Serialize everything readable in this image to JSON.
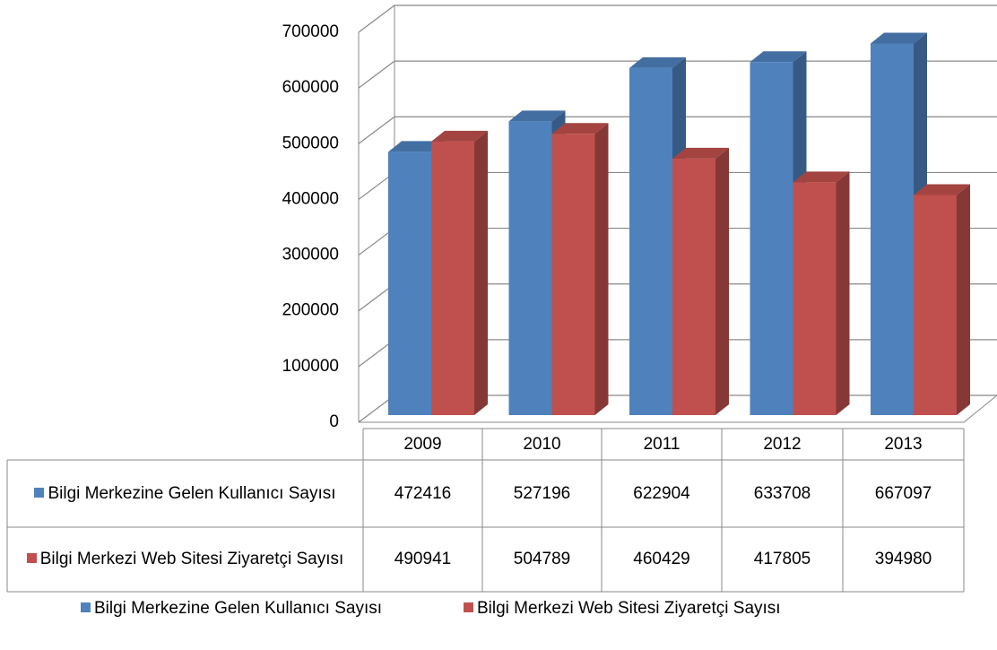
{
  "chart_data": {
    "type": "bar3d",
    "categories": [
      "2009",
      "2010",
      "2011",
      "2012",
      "2013"
    ],
    "series": [
      {
        "name": "Bilgi Merkezine Gelen Kullanıcı Sayısı",
        "color": "#4f81bd",
        "values": [
          472416,
          527196,
          622904,
          633708,
          667097
        ]
      },
      {
        "name": "Bilgi Merkezi Web Sitesi Ziyaretçi Sayısı",
        "color": "#c0504d",
        "values": [
          490941,
          504789,
          460429,
          417805,
          394980
        ]
      }
    ],
    "ylim": [
      0,
      700000
    ],
    "yticks": [
      0,
      100000,
      200000,
      300000,
      400000,
      500000,
      600000,
      700000
    ],
    "grid": true,
    "legend": "bottom",
    "data_table": true
  }
}
